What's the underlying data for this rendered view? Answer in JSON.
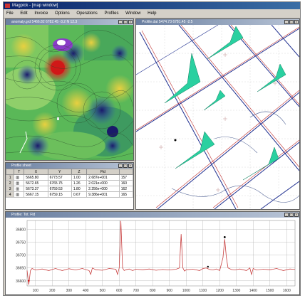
{
  "app": {
    "title": "Magpick - [map window]",
    "menu": [
      "File",
      "Edit",
      "Invoice",
      "Options",
      "Operations",
      "Profiles",
      "Window",
      "Help"
    ]
  },
  "map_window": {
    "title": "anomaly.grd 5466.82 6782.45 -3.2 N 12.3"
  },
  "profile_window": {
    "title": "Profile.dat 5474.73 6781.45 -2.5"
  },
  "table_window": {
    "title": "Profile sheet",
    "columns": [
      "T",
      "X",
      "Y",
      "Z",
      "Fld",
      ""
    ],
    "rows": [
      {
        "idx": "1",
        "t": "",
        "x": "5665.80",
        "y": "6773.57",
        "z": "1.00",
        "fld": "2.687e+001",
        "extra": "157"
      },
      {
        "idx": "2",
        "t": "",
        "x": "5672.65",
        "y": "6765.75",
        "z": "1.26",
        "fld": "2.021e+000",
        "extra": "160"
      },
      {
        "idx": "3",
        "t": "",
        "x": "5673.37",
        "y": "6759.53",
        "z": "1.80",
        "fld": "2.256e+000",
        "extra": "162"
      },
      {
        "idx": "4",
        "t": "",
        "x": "5667.15",
        "y": "6759.15",
        "z": "0.67",
        "fld": "9.386e+001",
        "extra": "165"
      }
    ]
  },
  "plot_window": {
    "title": "Profile: Tot. Fld"
  },
  "colors": {
    "trace": "#c84040",
    "grid": "#b0b0b0",
    "anomaly": "#2ad0a0",
    "line_red": "#c03030",
    "line_blue": "#203090"
  },
  "chart_data": {
    "type": "line",
    "title": "",
    "xlabel": "",
    "ylabel": "",
    "x_ticks": [
      "100",
      "200",
      "300",
      "400",
      "500",
      "600",
      "700",
      "800",
      "900",
      "1000",
      "1100",
      "1200",
      "1300",
      "1400",
      "1500",
      "1600"
    ],
    "y_ticks": [
      "36800",
      "36750",
      "36700",
      "36650",
      "36600"
    ],
    "xlim": [
      50,
      1650
    ],
    "ylim": [
      36580,
      36835
    ],
    "grid": true,
    "series": [
      {
        "x": [
          50,
          60,
          70,
          80,
          100,
          140,
          180,
          220,
          260,
          300,
          340,
          380,
          420,
          430,
          440,
          460,
          500,
          540,
          580,
          590,
          600,
          610,
          620,
          630,
          640,
          660,
          680,
          700,
          740,
          780,
          820,
          860,
          900,
          940,
          960,
          970,
          980,
          990,
          1000,
          1040,
          1080,
          1100,
          1120,
          1140,
          1160,
          1180,
          1200,
          1220,
          1230,
          1240,
          1250,
          1270,
          1290,
          1320,
          1360,
          1380,
          1390,
          1400,
          1420,
          1460,
          1500,
          1540,
          1580,
          1620,
          1650
        ],
        "y": [
          36640,
          36585,
          36640,
          36648,
          36642,
          36646,
          36640,
          36648,
          36640,
          36647,
          36642,
          36648,
          36640,
          36625,
          36650,
          36643,
          36641,
          36648,
          36645,
          36625,
          36650,
          36833,
          36650,
          36640,
          36643,
          36646,
          36640,
          36645,
          36643,
          36646,
          36641,
          36644,
          36642,
          36645,
          36650,
          36782,
          36650,
          36638,
          36643,
          36645,
          36640,
          36648,
          36650,
          36644,
          36642,
          36646,
          36640,
          36690,
          36762,
          36690,
          36650,
          36644,
          36642,
          36646,
          36640,
          36650,
          36625,
          36648,
          36642,
          36645,
          36643,
          36648,
          36640,
          36646,
          36644
        ]
      }
    ]
  }
}
